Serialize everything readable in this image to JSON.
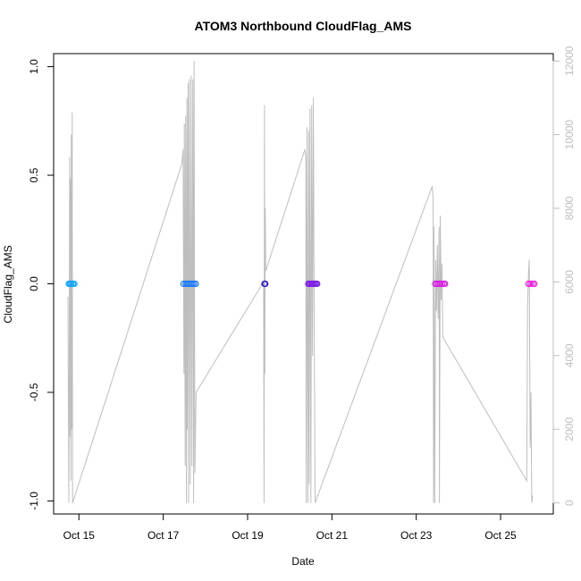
{
  "chart_data": {
    "type": "scatter",
    "title": "ATOM3 Northbound CloudFlag_AMS",
    "xlabel": "Date",
    "ylabel": "CloudFlag_AMS",
    "x_ticks": [
      "Oct 15",
      "Oct 17",
      "Oct 19",
      "Oct 21",
      "Oct 23",
      "Oct 25"
    ],
    "x_tick_days": [
      15,
      17,
      19,
      21,
      23,
      25
    ],
    "xlim_days": [
      14.4,
      26.25
    ],
    "ylim": [
      -1.06,
      1.06
    ],
    "y_ticks": [
      -1.0,
      -0.5,
      0.0,
      0.5,
      1.0
    ],
    "y_tick_labels": [
      "-1.0",
      "-0.5",
      "0.0",
      "0.5",
      "1.0"
    ],
    "y2_ticks": [
      0,
      2000,
      4000,
      6000,
      8000,
      10000,
      12000
    ],
    "y2lim": [
      -300,
      12200
    ],
    "grid": false,
    "points": {
      "y_value": 0.0,
      "days": [
        14.76,
        14.79,
        14.82,
        14.86,
        14.89,
        17.48,
        17.53,
        17.57,
        17.61,
        17.65,
        17.69,
        17.73,
        17.77,
        19.4,
        19.41,
        19.42,
        20.44,
        20.47,
        20.5,
        20.53,
        20.56,
        20.59,
        20.62,
        20.65,
        23.45,
        23.49,
        23.53,
        23.57,
        23.61,
        23.65,
        23.68,
        25.66,
        25.71,
        25.76,
        25.8
      ],
      "colors": [
        "#0aa6ff",
        "#0aa6ff",
        "#0aa6ff",
        "#0aa6ff",
        "#0aa6ff",
        "#1a7bff",
        "#1a7bff",
        "#1a7bff",
        "#1a7bff",
        "#1a7bff",
        "#1a7bff",
        "#1a7bff",
        "#1a7bff",
        "#2f1ad8",
        "#2f1ad8",
        "#2f1ad8",
        "#7f1ee6",
        "#7f1ee6",
        "#7f1ee6",
        "#7f1ee6",
        "#7f1ee6",
        "#7f1ee6",
        "#7f1ee6",
        "#7f1ee6",
        "#d91ee6",
        "#d91ee6",
        "#d91ee6",
        "#d91ee6",
        "#d91ee6",
        "#d91ee6",
        "#d91ee6",
        "#f21ee0",
        "#f21ee0",
        "#f21ee0",
        "#f21ee0"
      ]
    },
    "altitude_line": {
      "color": "#bebebe",
      "vertices": [
        [
          14.74,
          5600
        ],
        [
          14.75,
          2500
        ],
        [
          14.76,
          0
        ],
        [
          14.77,
          4400
        ],
        [
          14.78,
          9400
        ],
        [
          14.79,
          1800
        ],
        [
          14.8,
          8800
        ],
        [
          14.81,
          600
        ],
        [
          14.82,
          10000
        ],
        [
          14.83,
          2000
        ],
        [
          14.84,
          10600
        ],
        [
          14.85,
          0
        ],
        [
          17.44,
          9200
        ],
        [
          17.47,
          9600
        ],
        [
          17.49,
          3500
        ],
        [
          17.5,
          10300
        ],
        [
          17.52,
          1000
        ],
        [
          17.53,
          10500
        ],
        [
          17.55,
          0
        ],
        [
          17.56,
          11000
        ],
        [
          17.57,
          2000
        ],
        [
          17.59,
          11400
        ],
        [
          17.6,
          0
        ],
        [
          17.62,
          11500
        ],
        [
          17.64,
          500
        ],
        [
          17.66,
          11600
        ],
        [
          17.68,
          1000
        ],
        [
          17.7,
          11500
        ],
        [
          17.72,
          0
        ],
        [
          17.73,
          12000
        ],
        [
          17.75,
          800
        ],
        [
          17.78,
          3000
        ],
        [
          19.38,
          6000
        ],
        [
          19.39,
          0
        ],
        [
          19.4,
          10800
        ],
        [
          19.41,
          3500
        ],
        [
          19.42,
          8000
        ],
        [
          19.43,
          6300
        ],
        [
          20.36,
          9600
        ],
        [
          20.38,
          9400
        ],
        [
          20.39,
          0
        ],
        [
          20.41,
          10200
        ],
        [
          20.43,
          0
        ],
        [
          20.45,
          10100
        ],
        [
          20.46,
          500
        ],
        [
          20.48,
          10700
        ],
        [
          20.5,
          0
        ],
        [
          20.52,
          10800
        ],
        [
          20.54,
          4000
        ],
        [
          20.56,
          11000
        ],
        [
          20.58,
          5000
        ],
        [
          20.6,
          0
        ],
        [
          23.38,
          8600
        ],
        [
          23.4,
          8200
        ],
        [
          23.41,
          0
        ],
        [
          23.42,
          7500
        ],
        [
          23.44,
          0
        ],
        [
          23.46,
          6600
        ],
        [
          23.48,
          5200
        ],
        [
          23.5,
          7000
        ],
        [
          23.52,
          5000
        ],
        [
          23.54,
          7500
        ],
        [
          23.55,
          0
        ],
        [
          23.57,
          7800
        ],
        [
          23.59,
          5500
        ],
        [
          23.61,
          6500
        ],
        [
          23.63,
          4500
        ],
        [
          25.62,
          600
        ],
        [
          25.64,
          5300
        ],
        [
          25.66,
          6200
        ],
        [
          25.68,
          6600
        ],
        [
          25.7,
          1500
        ],
        [
          25.72,
          3000
        ],
        [
          25.74,
          0
        ],
        [
          25.76,
          200
        ]
      ]
    }
  }
}
